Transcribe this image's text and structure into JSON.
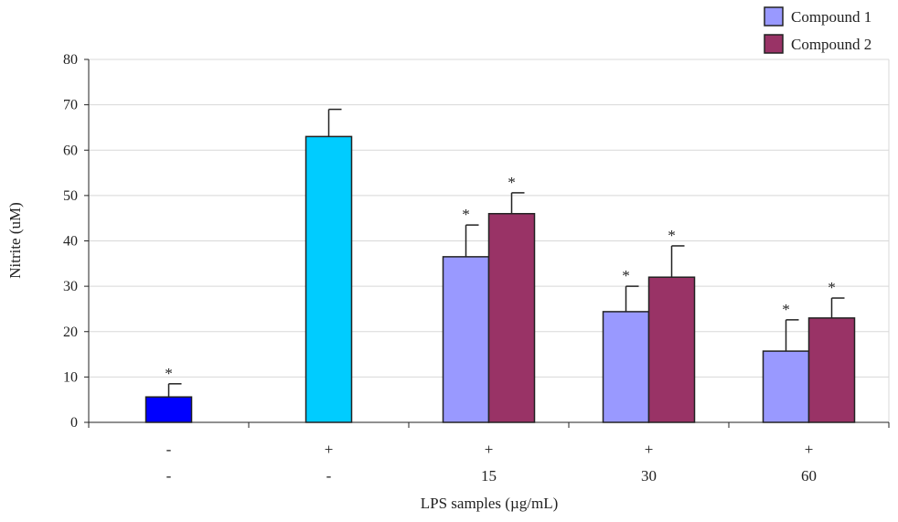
{
  "chart_data": {
    "type": "bar",
    "title": "",
    "xlabel": "LPS samples (µg/mL)",
    "ylabel": "Nitrite (uM)",
    "ylim": [
      0,
      80
    ],
    "yticks": [
      0,
      10,
      20,
      30,
      40,
      50,
      60,
      70,
      80
    ],
    "grid": true,
    "legend_position": "top-right",
    "categories": [
      {
        "row1": "-",
        "row2": "-"
      },
      {
        "row1": "+",
        "row2": "-"
      },
      {
        "row1": "+",
        "row2": "15"
      },
      {
        "row1": "+",
        "row2": "30"
      },
      {
        "row1": "+",
        "row2": "60"
      }
    ],
    "series": [
      {
        "color": "#0000ff",
        "values": [
          5.6,
          null,
          null,
          null,
          null
        ],
        "errors": [
          8.5,
          null,
          null,
          null,
          null
        ],
        "significant": [
          true,
          false,
          false,
          false,
          false
        ]
      },
      {
        "color": "#00ccff",
        "values": [
          null,
          63,
          null,
          null,
          null
        ],
        "errors": [
          null,
          69,
          null,
          null,
          null
        ],
        "significant": [
          false,
          false,
          false,
          false,
          false
        ]
      },
      {
        "name": "Compound 1",
        "color": "#9999ff",
        "values": [
          null,
          null,
          36.5,
          24.4,
          15.7
        ],
        "errors": [
          null,
          null,
          43.5,
          30,
          22.6
        ],
        "significant": [
          false,
          false,
          true,
          true,
          true
        ]
      },
      {
        "name": "Compound 2",
        "color": "#993366",
        "values": [
          null,
          null,
          46,
          32,
          23
        ],
        "errors": [
          null,
          null,
          50.6,
          38.9,
          27.4
        ],
        "significant": [
          false,
          false,
          true,
          true,
          true
        ]
      }
    ],
    "significance_marker": "*"
  }
}
